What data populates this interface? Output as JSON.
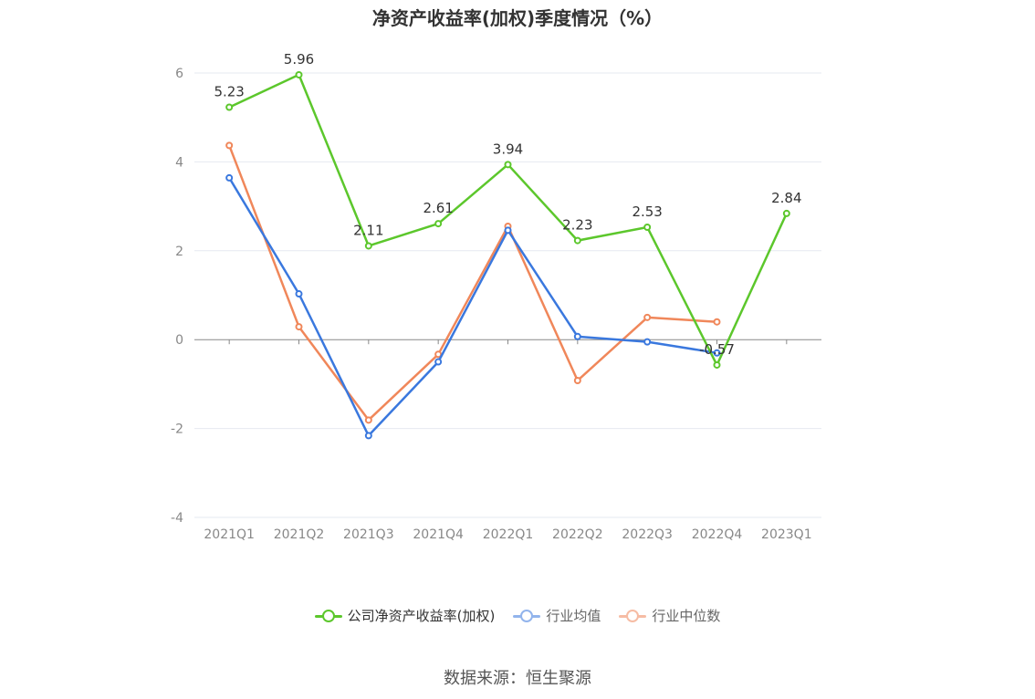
{
  "title": "净资产收益率(加权)季度情况（%）",
  "source": "数据来源：恒生聚源",
  "colors": {
    "company": "#5cc72c",
    "industry_avg": "#3a78de",
    "industry_median": "#f0875a"
  },
  "chart_data": {
    "type": "line",
    "title": "净资产收益率(加权)季度情况（%）",
    "categories": [
      "2021Q1",
      "2021Q2",
      "2021Q3",
      "2021Q4",
      "2022Q1",
      "2022Q2",
      "2022Q3",
      "2022Q4",
      "2023Q1"
    ],
    "ylim": [
      -4,
      6
    ],
    "yticks": [
      -4,
      -2,
      0,
      2,
      4,
      6
    ],
    "grid": true,
    "legend_position": "bottom",
    "series": [
      {
        "name": "公司净资产收益率(加权)",
        "color": "#5cc72c",
        "values": [
          5.23,
          5.96,
          2.11,
          2.61,
          3.94,
          2.23,
          2.53,
          -0.57,
          2.84
        ],
        "labels": [
          "5.23",
          "5.96",
          "2.11",
          "2.61",
          "3.94",
          "2.23",
          "2.53",
          "-0.57",
          "2.84"
        ]
      },
      {
        "name": "行业均值",
        "color": "#3a78de",
        "values": [
          3.64,
          1.03,
          -2.16,
          -0.5,
          2.46,
          0.07,
          -0.05,
          -0.3,
          null
        ]
      },
      {
        "name": "行业中位数",
        "color": "#f0875a",
        "values": [
          4.37,
          0.29,
          -1.81,
          -0.33,
          2.55,
          -0.92,
          0.5,
          0.4,
          null
        ]
      }
    ]
  },
  "legend": [
    {
      "label": "公司净资产收益率(加权)",
      "color": "#5cc72c",
      "active": true
    },
    {
      "label": "行业均值",
      "color": "#3a78de",
      "active": false
    },
    {
      "label": "行业中位数",
      "color": "#f0875a",
      "active": false
    }
  ]
}
